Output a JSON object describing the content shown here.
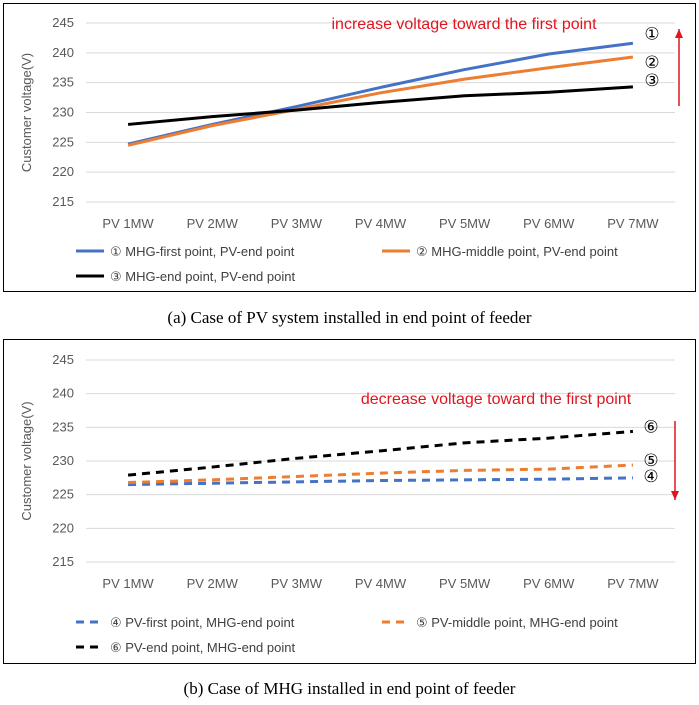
{
  "panels": [
    {
      "caption": "(a)  Case  of  PV  system  installed  in  end  point  of  feeder",
      "chart_data": {
        "type": "line",
        "ylabel": "Customer voltage(V)",
        "ylim": [
          215,
          245
        ],
        "yticks": [
          215,
          220,
          225,
          230,
          235,
          240,
          245
        ],
        "categories": [
          "PV 1MW",
          "PV 2MW",
          "PV 3MW",
          "PV 4MW",
          "PV 5MW",
          "PV 6MW",
          "PV 7MW"
        ],
        "grid": "horizontal",
        "legend": "bottom",
        "annotation": "increase voltage toward the first point",
        "arrow_direction": "up",
        "series": [
          {
            "name": "① MHG-first point, PV-end point",
            "marker": "①",
            "color": "#4472c4",
            "dash": false,
            "values": [
              224.7,
              228.0,
              231.0,
              234.2,
              237.2,
              239.8,
              241.6
            ]
          },
          {
            "name": "② MHG-middle point, PV-end point",
            "marker": "②",
            "color": "#ed7d31",
            "dash": false,
            "values": [
              224.5,
              227.8,
              230.5,
              233.3,
              235.6,
              237.5,
              239.3
            ]
          },
          {
            "name": "③ MHG-end point, PV-end point",
            "marker": "③",
            "color": "#000000",
            "dash": false,
            "values": [
              228.0,
              229.3,
              230.4,
              231.7,
              232.8,
              233.4,
              234.3
            ]
          }
        ]
      }
    },
    {
      "caption": "(b)  Case  of  MHG  installed  in  end  point  of  feeder",
      "chart_data": {
        "type": "line",
        "ylabel": "Customer voltage(V)",
        "ylim": [
          215,
          245
        ],
        "yticks": [
          215,
          220,
          225,
          230,
          235,
          240,
          245
        ],
        "categories": [
          "PV 1MW",
          "PV 2MW",
          "PV 3MW",
          "PV 4MW",
          "PV 5MW",
          "PV 6MW",
          "PV 7MW"
        ],
        "grid": "horizontal",
        "legend": "bottom",
        "annotation": "decrease voltage toward the first point",
        "arrow_direction": "down",
        "series": [
          {
            "name": "④ PV-first point, MHG-end point",
            "marker": "④",
            "color": "#4472c4",
            "dash": true,
            "values": [
              226.5,
              226.7,
              226.9,
              227.1,
              227.2,
              227.3,
              227.5
            ]
          },
          {
            "name": "⑤ PV-middle point, MHG-end point",
            "marker": "⑤",
            "color": "#ed7d31",
            "dash": true,
            "values": [
              226.8,
              227.2,
              227.7,
              228.2,
              228.6,
              228.8,
              229.4
            ]
          },
          {
            "name": "⑥ PV-end point, MHG-end point",
            "marker": "⑥",
            "color": "#000000",
            "dash": true,
            "values": [
              227.9,
              229.1,
              230.4,
              231.5,
              232.7,
              233.4,
              234.4
            ]
          }
        ]
      }
    }
  ]
}
